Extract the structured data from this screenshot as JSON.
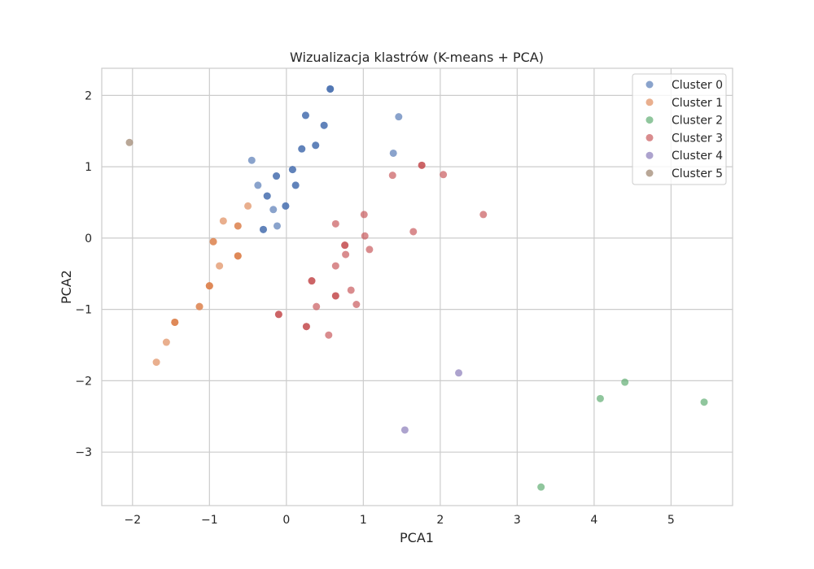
{
  "chart_data": {
    "type": "scatter",
    "title": "Wizualizacja klastrów (K-means + PCA)",
    "xlabel": "PCA1",
    "ylabel": "PCA2",
    "xlim": [
      -2.4,
      5.8
    ],
    "ylim": [
      -3.75,
      2.38
    ],
    "x_ticks": [
      -2,
      -1,
      0,
      1,
      2,
      3,
      4,
      5
    ],
    "y_ticks": [
      -3,
      -2,
      -1,
      0,
      1,
      2
    ],
    "grid": true,
    "legend_position": "top-right",
    "marker_opacity": 0.65,
    "series": [
      {
        "name": "Cluster 0",
        "color": "#4c72b0",
        "points": [
          [
            0.57,
            2.09
          ],
          [
            0.57,
            2.09
          ],
          [
            0.57,
            2.09
          ],
          [
            0.25,
            1.72
          ],
          [
            0.25,
            1.72
          ],
          [
            0.49,
            1.58
          ],
          [
            0.49,
            1.58
          ],
          [
            1.46,
            1.7
          ],
          [
            0.38,
            1.3
          ],
          [
            0.38,
            1.3
          ],
          [
            0.2,
            1.25
          ],
          [
            0.2,
            1.25
          ],
          [
            1.39,
            1.19
          ],
          [
            -0.45,
            1.09
          ],
          [
            0.08,
            0.96
          ],
          [
            0.08,
            0.96
          ],
          [
            -0.13,
            0.87
          ],
          [
            -0.13,
            0.87
          ],
          [
            0.12,
            0.74
          ],
          [
            0.12,
            0.74
          ],
          [
            -0.37,
            0.74
          ],
          [
            -0.25,
            0.59
          ],
          [
            -0.25,
            0.59
          ],
          [
            -0.01,
            0.45
          ],
          [
            -0.01,
            0.45
          ],
          [
            -0.17,
            0.4
          ],
          [
            -0.12,
            0.17
          ],
          [
            -0.3,
            0.12
          ],
          [
            -0.3,
            0.12
          ]
        ]
      },
      {
        "name": "Cluster 1",
        "color": "#dd8452",
        "points": [
          [
            -0.5,
            0.45
          ],
          [
            -0.82,
            0.24
          ],
          [
            -0.63,
            0.17
          ],
          [
            -0.63,
            0.17
          ],
          [
            -0.95,
            -0.05
          ],
          [
            -0.95,
            -0.05
          ],
          [
            -0.63,
            -0.25
          ],
          [
            -0.63,
            -0.25
          ],
          [
            -0.63,
            -0.25
          ],
          [
            -0.87,
            -0.39
          ],
          [
            -1.0,
            -0.67
          ],
          [
            -1.0,
            -0.67
          ],
          [
            -1.0,
            -0.67
          ],
          [
            -1.13,
            -0.96
          ],
          [
            -1.13,
            -0.96
          ],
          [
            -1.45,
            -1.18
          ],
          [
            -1.45,
            -1.18
          ],
          [
            -1.45,
            -1.18
          ],
          [
            -1.56,
            -1.46
          ],
          [
            -1.69,
            -1.74
          ]
        ]
      },
      {
        "name": "Cluster 2",
        "color": "#55a868",
        "points": [
          [
            4.4,
            -2.02
          ],
          [
            4.08,
            -2.25
          ],
          [
            5.43,
            -2.3
          ],
          [
            3.31,
            -3.49
          ]
        ]
      },
      {
        "name": "Cluster 3",
        "color": "#c44e52",
        "points": [
          [
            1.76,
            1.02
          ],
          [
            1.76,
            1.02
          ],
          [
            2.04,
            0.89
          ],
          [
            1.38,
            0.88
          ],
          [
            1.01,
            0.33
          ],
          [
            2.56,
            0.33
          ],
          [
            0.64,
            0.2
          ],
          [
            1.65,
            0.09
          ],
          [
            1.02,
            0.03
          ],
          [
            0.76,
            -0.1
          ],
          [
            0.76,
            -0.1
          ],
          [
            1.08,
            -0.16
          ],
          [
            0.77,
            -0.23
          ],
          [
            0.64,
            -0.39
          ],
          [
            0.33,
            -0.6
          ],
          [
            0.33,
            -0.6
          ],
          [
            0.84,
            -0.73
          ],
          [
            0.64,
            -0.81
          ],
          [
            0.64,
            -0.81
          ],
          [
            0.91,
            -0.93
          ],
          [
            0.39,
            -0.96
          ],
          [
            -0.1,
            -1.07
          ],
          [
            -0.1,
            -1.07
          ],
          [
            0.26,
            -1.24
          ],
          [
            0.26,
            -1.24
          ],
          [
            0.55,
            -1.36
          ]
        ]
      },
      {
        "name": "Cluster 4",
        "color": "#8172b3",
        "points": [
          [
            2.24,
            -1.89
          ],
          [
            1.54,
            -2.69
          ]
        ]
      },
      {
        "name": "Cluster 5",
        "color": "#937860",
        "points": [
          [
            -2.04,
            1.34
          ]
        ]
      }
    ]
  }
}
